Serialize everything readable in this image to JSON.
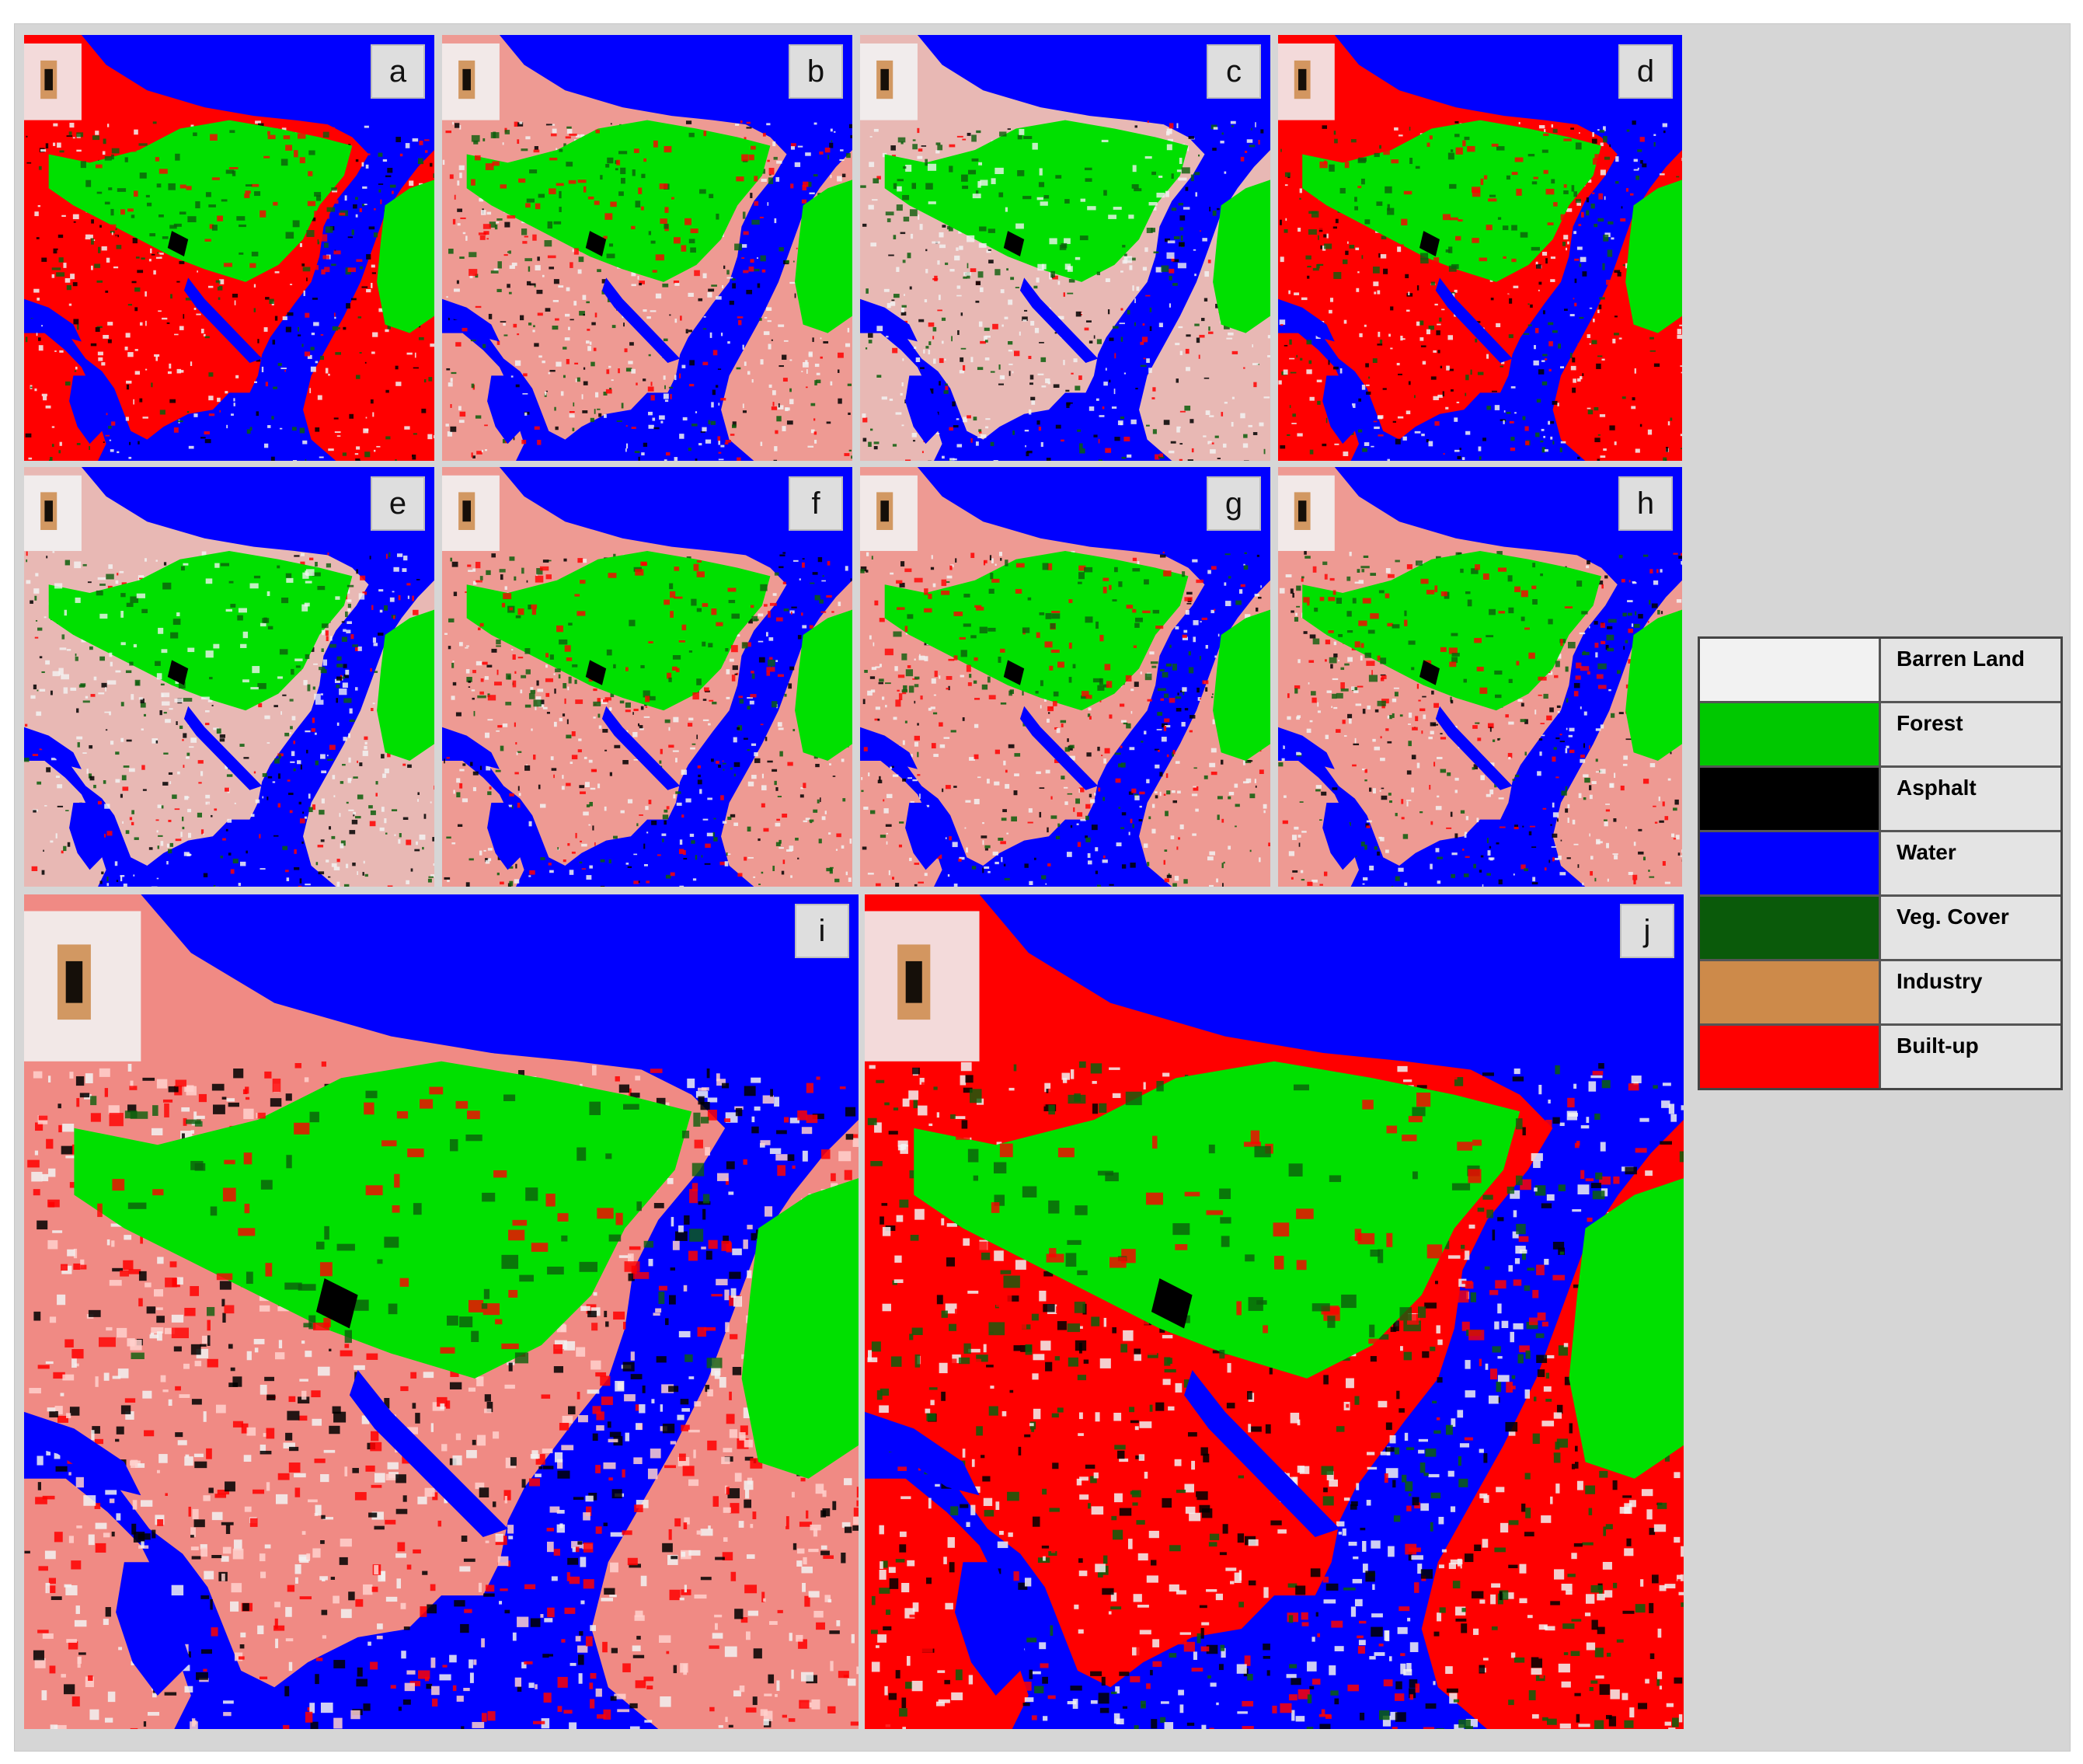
{
  "colors": {
    "water": "#0000ff",
    "forest": "#00e000",
    "veg_cover": "#0b5e0b",
    "builtup": "#ff0000",
    "builtup_light": "#f08a84",
    "barren": "#f2f2f2",
    "asphalt": "#000000",
    "industry": "#cd8a4a"
  },
  "panels": [
    {
      "label": "a",
      "style": "builtup"
    },
    {
      "label": "b",
      "style": "mixed"
    },
    {
      "label": "c",
      "style": "barren"
    },
    {
      "label": "d",
      "style": "builtup"
    },
    {
      "label": "e",
      "style": "barren"
    },
    {
      "label": "f",
      "style": "mixed"
    },
    {
      "label": "g",
      "style": "mixed"
    },
    {
      "label": "h",
      "style": "mixed"
    },
    {
      "label": "i",
      "style": "pink"
    },
    {
      "label": "j",
      "style": "builtup"
    }
  ],
  "legend": [
    {
      "label": "Barren Land",
      "color": "#f2f2f2"
    },
    {
      "label": "Forest",
      "color": "#00c800"
    },
    {
      "label": "Asphalt",
      "color": "#000000"
    },
    {
      "label": "Water",
      "color": "#0000ff"
    },
    {
      "label": "Veg. Cover",
      "color": "#0a5a0a"
    },
    {
      "label": "Industry",
      "color": "#cd8a4a"
    },
    {
      "label": "Built-up",
      "color": "#ff0000"
    }
  ]
}
